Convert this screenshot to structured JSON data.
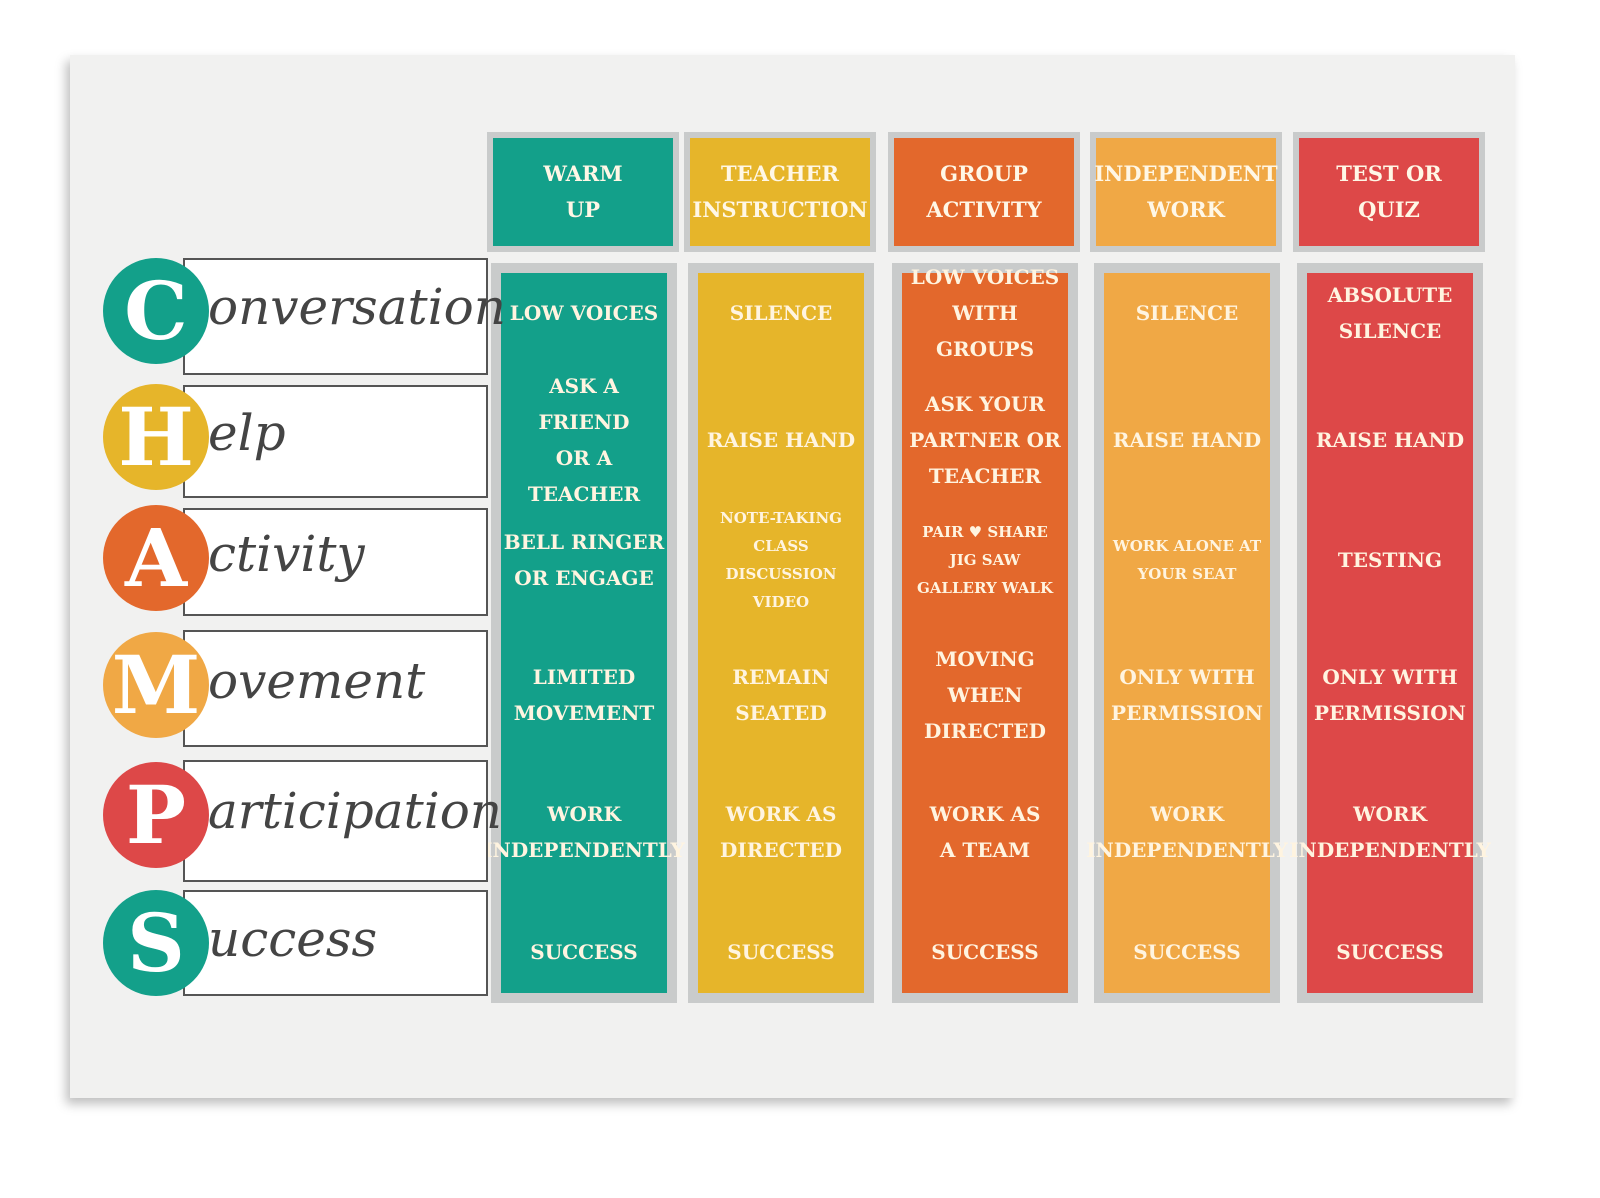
{
  "columns": [
    {
      "header": "WARM\nUP",
      "color": "#13a08a",
      "cells": [
        "LOW VOICES",
        "ASK A FRIEND\nOR A TEACHER",
        "BELL RINGER\nOR ENGAGE",
        "LIMITED\nMOVEMENT",
        "WORK\nINDEPENDENTLY",
        "SUCCESS"
      ]
    },
    {
      "header": "TEACHER\nINSTRUCTION",
      "color": "#e6b52a",
      "cells": [
        "SILENCE",
        "RAISE HAND",
        "NOTE-TAKING\nCLASS DISCUSSION\nVIDEO",
        "REMAIN\nSEATED",
        "WORK AS\nDIRECTED",
        "SUCCESS"
      ]
    },
    {
      "header": "GROUP\nACTIVITY",
      "color": "#e3682c",
      "cells": [
        "LOW VOICES\nWITH GROUPS",
        "ASK YOUR\nPARTNER OR\nTEACHER",
        "PAIR ♥ SHARE\nJIG SAW\nGALLERY WALK",
        "MOVING\nWHEN\nDIRECTED",
        "WORK AS\nA TEAM",
        "SUCCESS"
      ]
    },
    {
      "header": "INDEPENDENT\nWORK",
      "color": "#f0a845",
      "cells": [
        "SILENCE",
        "RAISE HAND",
        "WORK ALONE AT\nYOUR SEAT",
        "ONLY WITH\nPERMISSION",
        "WORK\nINDEPENDENTLY",
        "SUCCESS"
      ]
    },
    {
      "header": "TEST OR\nQUIZ",
      "color": "#dd4848",
      "cells": [
        "ABSOLUTE\nSILENCE",
        "RAISE HAND",
        "TESTING",
        "ONLY WITH\nPERMISSION",
        "WORK\nINDEPENDENTLY",
        "SUCCESS"
      ]
    }
  ],
  "rows": [
    {
      "letter": "C",
      "rest": "onversation",
      "color": "#13a08a"
    },
    {
      "letter": "H",
      "rest": "elp",
      "color": "#e6b52a"
    },
    {
      "letter": "A",
      "rest": "ctivity",
      "color": "#e3682c"
    },
    {
      "letter": "M",
      "rest": "ovement",
      "color": "#f0a845"
    },
    {
      "letter": "P",
      "rest": "articipation",
      "color": "#dd4848"
    },
    {
      "letter": "S",
      "rest": "uccess",
      "color": "#13a08a"
    }
  ]
}
